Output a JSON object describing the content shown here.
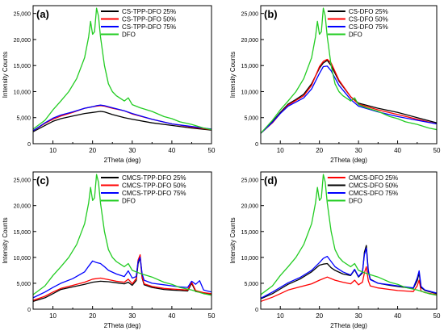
{
  "chart_data": [
    {
      "type": "line",
      "panel_label": "(a)",
      "xlabel": "2Theta (deg)",
      "ylabel": "Intensity Counts",
      "xlim": [
        5,
        50
      ],
      "ylim": [
        0,
        26500
      ],
      "x_ticks": [
        10,
        20,
        30,
        40,
        50
      ],
      "y_ticks": [
        0,
        5000,
        10000,
        15000,
        20000,
        25000
      ],
      "y_tick_labels": [
        "0",
        "5,000",
        "10,000",
        "15,000",
        "20,000",
        "25,000"
      ],
      "legend_position": "top-right",
      "grid": false,
      "series": [
        {
          "name": "CS-TPP-DFO 25%",
          "color": "#000000",
          "x": [
            5,
            8,
            10,
            12,
            15,
            18,
            20,
            21,
            22,
            23,
            25,
            28,
            30,
            35,
            40,
            45,
            50
          ],
          "y": [
            2300,
            3500,
            4300,
            4800,
            5300,
            5800,
            6000,
            6100,
            6200,
            6100,
            5600,
            5000,
            4700,
            4000,
            3500,
            3000,
            2600
          ]
        },
        {
          "name": "CS-TPP-DFO 50%",
          "color": "#ff0000",
          "x": [
            5,
            8,
            10,
            12,
            15,
            18,
            20,
            21,
            22,
            23,
            25,
            28,
            30,
            35,
            40,
            45,
            50
          ],
          "y": [
            2500,
            3900,
            4700,
            5300,
            6000,
            6800,
            7100,
            7200,
            7300,
            7200,
            6800,
            6300,
            5700,
            4700,
            3800,
            3200,
            2700
          ]
        },
        {
          "name": "CS-TPP-DFO 75%",
          "color": "#0000ff",
          "x": [
            5,
            8,
            10,
            12,
            15,
            18,
            20,
            21,
            22,
            23,
            25,
            28,
            30,
            35,
            40,
            45,
            50
          ],
          "y": [
            2500,
            4000,
            4900,
            5500,
            6100,
            6800,
            7100,
            7300,
            7400,
            7300,
            6900,
            6300,
            5800,
            4700,
            3800,
            3300,
            2800
          ]
        },
        {
          "name": "DFO",
          "color": "#22cc22",
          "x": [
            5,
            8,
            10,
            12,
            14,
            16,
            18,
            19,
            19.5,
            20,
            20.5,
            21,
            21.5,
            22,
            23,
            24,
            25,
            26,
            28,
            29,
            30,
            32,
            35,
            38,
            40,
            42,
            45,
            48,
            50
          ],
          "y": [
            2800,
            4500,
            6500,
            8200,
            10000,
            12500,
            16500,
            20500,
            23500,
            21000,
            21500,
            26000,
            24500,
            20500,
            15000,
            11500,
            10000,
            9200,
            8200,
            8800,
            7500,
            6900,
            6200,
            5200,
            4800,
            4200,
            3700,
            3000,
            2700
          ]
        }
      ]
    },
    {
      "type": "line",
      "panel_label": "(b)",
      "xlabel": "2Theta (deg)",
      "ylabel": "Intensity Counts",
      "xlim": [
        5,
        50
      ],
      "ylim": [
        0,
        26500
      ],
      "x_ticks": [
        10,
        20,
        30,
        40,
        50
      ],
      "y_ticks": [
        0,
        5000,
        10000,
        15000,
        20000,
        25000
      ],
      "y_tick_labels": [
        "0",
        "5,000",
        "10,000",
        "15,000",
        "20,000",
        "25,000"
      ],
      "legend_position": "top-right",
      "grid": false,
      "series": [
        {
          "name": "CS-DFO 25%",
          "color": "#000000",
          "x": [
            5,
            8,
            10,
            12,
            14,
            16,
            18,
            20,
            21,
            22,
            23,
            25,
            28,
            30,
            35,
            40,
            45,
            50
          ],
          "y": [
            2000,
            4200,
            6000,
            7600,
            8500,
            9500,
            11500,
            14500,
            15500,
            16000,
            15000,
            12000,
            9000,
            7800,
            6800,
            6000,
            5000,
            4000
          ]
        },
        {
          "name": "CS-DFO 50%",
          "color": "#ff0000",
          "x": [
            5,
            8,
            10,
            12,
            14,
            16,
            18,
            20,
            21,
            22,
            23,
            25,
            28,
            30,
            35,
            40,
            45,
            50
          ],
          "y": [
            2000,
            4000,
            5800,
            7400,
            8300,
            9200,
            11200,
            14800,
            15800,
            16200,
            15500,
            12200,
            9000,
            7600,
            6500,
            5600,
            4700,
            3800
          ]
        },
        {
          "name": "CS-DFO 75%",
          "color": "#0000ff",
          "x": [
            5,
            8,
            10,
            12,
            14,
            16,
            18,
            20,
            21,
            22,
            23,
            25,
            28,
            30,
            35,
            40,
            45,
            50
          ],
          "y": [
            2000,
            4100,
            5800,
            7200,
            8000,
            8800,
            10500,
            13500,
            14800,
            14900,
            14000,
            11200,
            8500,
            7200,
            6100,
            5200,
            4500,
            3800
          ]
        },
        {
          "name": "DFO",
          "color": "#22cc22",
          "x": [
            5,
            8,
            10,
            12,
            14,
            16,
            18,
            19,
            19.5,
            20,
            20.5,
            21,
            21.5,
            22,
            23,
            24,
            25,
            26,
            28,
            29,
            30,
            32,
            35,
            38,
            40,
            42,
            45,
            48,
            50
          ],
          "y": [
            2000,
            4500,
            6500,
            8200,
            10000,
            12500,
            16500,
            20500,
            23500,
            21000,
            21500,
            26000,
            24500,
            20500,
            15000,
            11500,
            10000,
            9200,
            8200,
            8800,
            7500,
            6900,
            6200,
            5200,
            4800,
            4200,
            3700,
            3000,
            2700
          ]
        }
      ]
    },
    {
      "type": "line",
      "panel_label": "(c)",
      "xlabel": "2Theta (deg)",
      "ylabel": "Intensity Counts",
      "xlim": [
        5,
        50
      ],
      "ylim": [
        0,
        26500
      ],
      "x_ticks": [
        10,
        20,
        30,
        40,
        50
      ],
      "y_ticks": [
        0,
        5000,
        10000,
        15000,
        20000,
        25000
      ],
      "y_tick_labels": [
        "0",
        "5,000",
        "10,000",
        "15,000",
        "20,000",
        "25,000"
      ],
      "legend_position": "top-right",
      "grid": false,
      "series": [
        {
          "name": "CMCS-TPP-DFO 25%",
          "color": "#000000",
          "x": [
            5,
            8,
            10,
            12,
            15,
            18,
            20,
            22,
            24,
            26,
            28,
            29,
            30,
            31,
            31.5,
            32,
            32.5,
            33,
            35,
            38,
            40,
            42,
            44,
            45,
            46,
            47,
            48,
            50
          ],
          "y": [
            1500,
            2200,
            3000,
            3800,
            4300,
            4800,
            5200,
            5400,
            5300,
            5100,
            4900,
            5200,
            4600,
            5500,
            8800,
            10000,
            6000,
            4700,
            4200,
            3800,
            3700,
            3600,
            3500,
            5000,
            3400,
            3300,
            3100,
            2900
          ]
        },
        {
          "name": "CMCS-TPP-DFO 50%",
          "color": "#ff0000",
          "x": [
            5,
            8,
            10,
            12,
            15,
            18,
            20,
            22,
            24,
            26,
            28,
            29,
            30,
            31,
            31.5,
            32,
            32.5,
            33,
            35,
            38,
            40,
            42,
            44,
            45,
            46,
            47,
            48,
            50
          ],
          "y": [
            1700,
            2500,
            3300,
            4000,
            4600,
            5200,
            5800,
            6000,
            5700,
            5400,
            5200,
            5800,
            4900,
            5900,
            9500,
            10500,
            6200,
            4900,
            4400,
            4000,
            3900,
            3800,
            3700,
            5200,
            3600,
            3400,
            3200,
            3000
          ]
        },
        {
          "name": "CMCS-TPP-DFO 75%",
          "color": "#0000ff",
          "x": [
            5,
            8,
            10,
            12,
            15,
            18,
            19,
            20,
            21,
            22,
            23,
            24,
            26,
            28,
            29,
            30,
            31,
            31.5,
            32,
            32.5,
            33,
            35,
            38,
            40,
            42,
            44,
            45,
            46,
            47,
            48,
            50
          ],
          "y": [
            2200,
            3300,
            4200,
            5000,
            5900,
            7200,
            8300,
            9300,
            9000,
            8800,
            8200,
            7500,
            6800,
            6300,
            7400,
            6000,
            6300,
            9200,
            10000,
            6800,
            5600,
            5000,
            4700,
            4500,
            4300,
            4200,
            5400,
            4800,
            5500,
            3700,
            3300
          ]
        },
        {
          "name": "DFO",
          "color": "#22cc22",
          "x": [
            5,
            8,
            10,
            12,
            14,
            16,
            18,
            19,
            19.5,
            20,
            20.5,
            21,
            21.5,
            22,
            23,
            24,
            25,
            26,
            28,
            29,
            30,
            32,
            35,
            38,
            40,
            42,
            45,
            48,
            50
          ],
          "y": [
            2800,
            4500,
            6500,
            8200,
            10000,
            12500,
            16500,
            20500,
            23500,
            21000,
            21500,
            26000,
            24500,
            20500,
            15000,
            11500,
            10000,
            9200,
            8200,
            8800,
            7500,
            6900,
            6200,
            5200,
            4800,
            4200,
            3700,
            3000,
            2700
          ]
        }
      ]
    },
    {
      "type": "line",
      "panel_label": "(d)",
      "xlabel": "2Theta (deg)",
      "ylabel": "Intensity Counts",
      "xlim": [
        5,
        50
      ],
      "ylim": [
        0,
        26500
      ],
      "x_ticks": [
        10,
        20,
        30,
        40,
        50
      ],
      "y_ticks": [
        0,
        5000,
        10000,
        15000,
        20000,
        25000
      ],
      "y_tick_labels": [
        "0",
        "5,000",
        "10,000",
        "15,000",
        "20,000",
        "25,000"
      ],
      "legend_position": "top-right",
      "grid": false,
      "series": [
        {
          "name": "CMCS-DFO 25%",
          "color": "#ff0000",
          "x": [
            5,
            8,
            10,
            12,
            15,
            18,
            20,
            22,
            24,
            26,
            28,
            29,
            30,
            31,
            31.5,
            32,
            32.5,
            33,
            35,
            38,
            40,
            42,
            44,
            45,
            45.5,
            46,
            47,
            50
          ],
          "y": [
            1500,
            2300,
            3000,
            3700,
            4300,
            4900,
            5600,
            6200,
            5600,
            5200,
            4900,
            5600,
            4700,
            5200,
            7000,
            8200,
            5500,
            4500,
            4100,
            3800,
            3600,
            3500,
            3400,
            4500,
            5600,
            3500,
            3200,
            2800
          ]
        },
        {
          "name": "CMCS-DFO 50%",
          "color": "#000000",
          "x": [
            5,
            8,
            10,
            12,
            15,
            18,
            20,
            21,
            22,
            23,
            24,
            26,
            28,
            29,
            30,
            31,
            31.5,
            32,
            32.5,
            33,
            35,
            38,
            40,
            42,
            44,
            45,
            45.5,
            46,
            47,
            50
          ],
          "y": [
            2000,
            3000,
            3900,
            4800,
            5800,
            7200,
            8500,
            8700,
            8800,
            8000,
            7500,
            6800,
            6500,
            7600,
            6200,
            7000,
            11000,
            12300,
            7500,
            5800,
            5000,
            4600,
            4400,
            4200,
            4000,
            5500,
            7000,
            4200,
            3600,
            3000
          ]
        },
        {
          "name": "CMCS-DFO 75%",
          "color": "#0000ff",
          "x": [
            5,
            8,
            10,
            12,
            15,
            18,
            20,
            21,
            22,
            23,
            24,
            26,
            28,
            29,
            30,
            31,
            31.5,
            32,
            32.5,
            33,
            35,
            38,
            40,
            42,
            44,
            45,
            45.5,
            46,
            47,
            50
          ],
          "y": [
            2100,
            3300,
            4200,
            5100,
            6100,
            7500,
            9000,
            9800,
            10200,
            9200,
            8200,
            7200,
            6600,
            7700,
            6300,
            7200,
            10500,
            11800,
            7200,
            5700,
            5000,
            4700,
            4500,
            4300,
            4100,
            6000,
            7400,
            4400,
            3700,
            3100
          ]
        },
        {
          "name": "DFO",
          "color": "#22cc22",
          "x": [
            5,
            8,
            10,
            12,
            14,
            16,
            18,
            19,
            19.5,
            20,
            20.5,
            21,
            21.5,
            22,
            23,
            24,
            25,
            26,
            28,
            29,
            30,
            32,
            35,
            38,
            40,
            42,
            45,
            48,
            50
          ],
          "y": [
            2800,
            4500,
            6500,
            8200,
            10000,
            12500,
            16500,
            20500,
            23500,
            21000,
            21500,
            26000,
            24500,
            20500,
            15000,
            11500,
            10000,
            9200,
            8200,
            8800,
            7500,
            6900,
            6200,
            5200,
            4800,
            4200,
            3700,
            3000,
            2700
          ]
        }
      ]
    }
  ]
}
